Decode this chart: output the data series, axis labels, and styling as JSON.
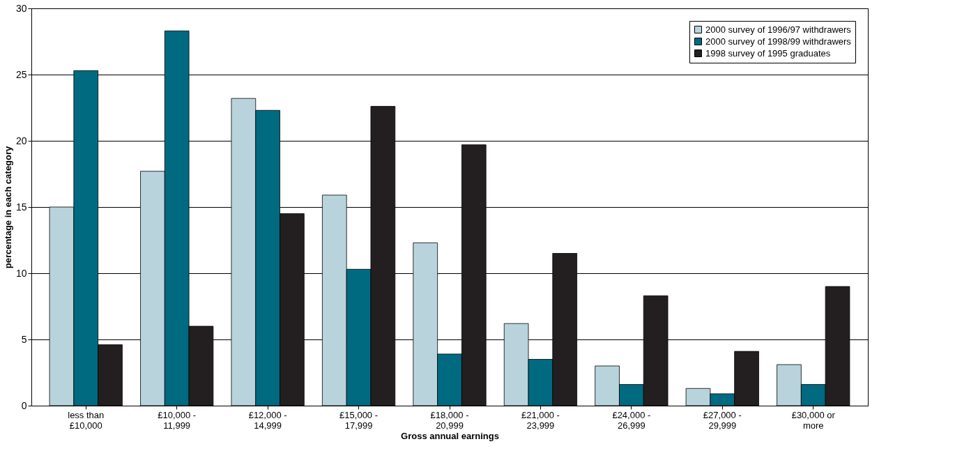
{
  "chart_data": {
    "type": "bar",
    "xlabel": "Gross annual earnings",
    "ylabel": "percentage in each category",
    "categories": [
      "less than\n£10,000",
      "£10,000 -\n11,999",
      "£12,000 -\n14,999",
      "£15,000 -\n17,999",
      "£18,000 -\n20,999",
      "£21,000 -\n23,999",
      "£24,000 -\n26,999",
      "£27,000 -\n29,999",
      "£30,000 or\nmore"
    ],
    "series": [
      {
        "name": "2000 survey of 1996/97 withdrawers",
        "color": "#b8d3dc",
        "values": [
          15.0,
          17.7,
          23.2,
          15.9,
          12.3,
          6.2,
          3.0,
          1.3,
          3.1
        ]
      },
      {
        "name": "2000 survey of 1998/99 withdrawers",
        "color": "#006a80",
        "values": [
          25.3,
          28.3,
          22.3,
          10.3,
          3.9,
          3.5,
          1.6,
          0.9,
          1.6
        ]
      },
      {
        "name": "1998 survey of 1995 graduates",
        "color": "#231f20",
        "values": [
          4.6,
          6.0,
          14.5,
          22.6,
          19.7,
          11.5,
          8.3,
          4.1,
          9.0
        ]
      }
    ],
    "ylim": [
      0,
      30
    ],
    "yticks": [
      0,
      5,
      10,
      15,
      20,
      25,
      30
    ],
    "grid": "y",
    "legend": "top right"
  }
}
